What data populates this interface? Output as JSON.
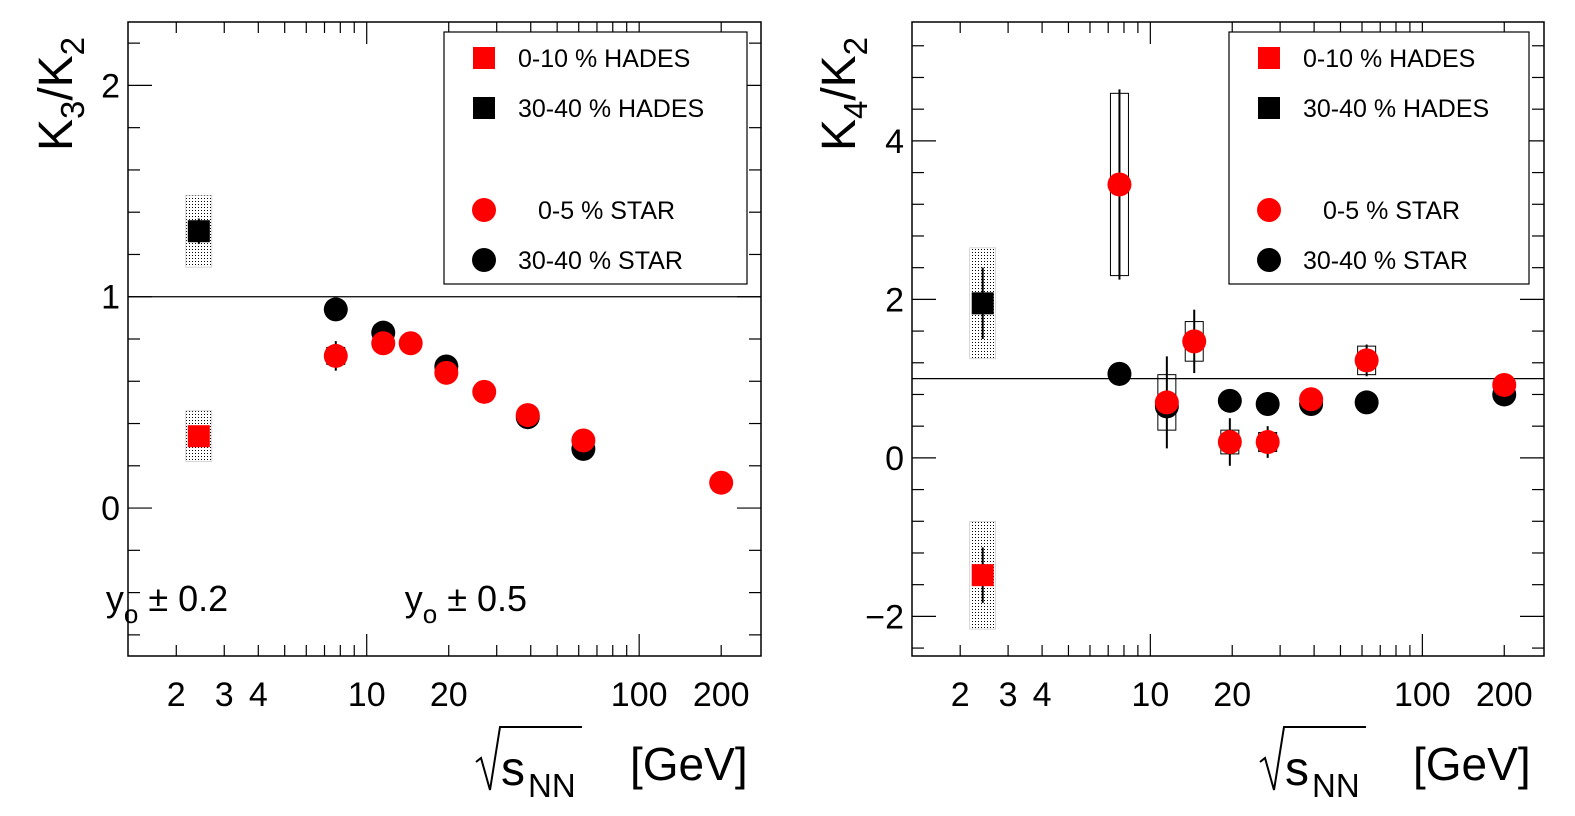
{
  "chart_data": [
    {
      "type": "scatter",
      "ylabel_main": "K",
      "ylabel_sub1": "3",
      "ylabel_sep": "/K",
      "ylabel_sub2": "2",
      "xlabel_main": "s",
      "xlabel_sub": "NN",
      "xlabel_unit": "[GeV]",
      "xscale": "log",
      "xlim": [
        1.33,
        280
      ],
      "ylim": [
        -0.7,
        2.3
      ],
      "x_ticks": [
        {
          "v": 2,
          "label": "2"
        },
        {
          "v": 3,
          "label": "3"
        },
        {
          "v": 4,
          "label": "4"
        },
        {
          "v": 10,
          "label": "10"
        },
        {
          "v": 20,
          "label": "20"
        },
        {
          "v": 100,
          "label": "100"
        },
        {
          "v": 200,
          "label": "200"
        }
      ],
      "y_ticks": [
        {
          "v": 0,
          "label": "0"
        },
        {
          "v": 1,
          "label": "1"
        },
        {
          "v": 2,
          "label": "2"
        }
      ],
      "reference_line": 1,
      "legend_position": "top-right",
      "legend": [
        {
          "marker": "square",
          "color": "#ff0000",
          "label": "0-10 % HADES"
        },
        {
          "marker": "square",
          "color": "#000000",
          "label": "30-40 % HADES"
        },
        {
          "marker": "circle",
          "color": "#ff0000",
          "label": "0-5 % STAR"
        },
        {
          "marker": "circle",
          "color": "#000000",
          "label": "30-40 % STAR"
        }
      ],
      "annotations": [
        {
          "y": "y",
          "sub": "o",
          "rest": " ± 0.2",
          "x_data": 1.6,
          "y_data": -0.25
        },
        {
          "y": "y",
          "sub": "o",
          "rest": " ± 0.5",
          "x_data": 20,
          "y_data": -0.25
        }
      ],
      "series": [
        {
          "name": "30-40 % HADES",
          "marker": "square",
          "color": "#000000",
          "points": [
            {
              "x": 2.42,
              "y": 1.31,
              "err": 0.06,
              "sys": 0.17
            }
          ]
        },
        {
          "name": "0-10 % HADES",
          "marker": "square",
          "color": "#ff0000",
          "points": [
            {
              "x": 2.42,
              "y": 0.34,
              "err": 0.04,
              "sys": 0.12
            }
          ]
        },
        {
          "name": "30-40 % STAR",
          "marker": "circle",
          "color": "#000000",
          "points": [
            {
              "x": 7.7,
              "y": 0.94
            },
            {
              "x": 11.5,
              "y": 0.83
            },
            {
              "x": 19.6,
              "y": 0.67
            },
            {
              "x": 39,
              "y": 0.43
            },
            {
              "x": 62.4,
              "y": 0.28
            }
          ]
        },
        {
          "name": "0-5 % STAR",
          "marker": "circle",
          "color": "#ff0000",
          "points": [
            {
              "x": 7.7,
              "y": 0.72,
              "err": 0.07,
              "sys": 0.04
            },
            {
              "x": 11.5,
              "y": 0.78,
              "sys": 0.03
            },
            {
              "x": 14.5,
              "y": 0.78
            },
            {
              "x": 19.6,
              "y": 0.64
            },
            {
              "x": 27,
              "y": 0.55
            },
            {
              "x": 39,
              "y": 0.44
            },
            {
              "x": 62.4,
              "y": 0.32
            },
            {
              "x": 200,
              "y": 0.12
            }
          ]
        }
      ]
    },
    {
      "type": "scatter",
      "ylabel_main": "K",
      "ylabel_sub1": "4",
      "ylabel_sep": "/K",
      "ylabel_sub2": "2",
      "xlabel_main": "s",
      "xlabel_sub": "NN",
      "xlabel_unit": "[GeV]",
      "xscale": "log",
      "xlim": [
        1.33,
        280
      ],
      "ylim": [
        -2.5,
        5.5
      ],
      "x_ticks": [
        {
          "v": 2,
          "label": "2"
        },
        {
          "v": 3,
          "label": "3"
        },
        {
          "v": 4,
          "label": "4"
        },
        {
          "v": 10,
          "label": "10"
        },
        {
          "v": 20,
          "label": "20"
        },
        {
          "v": 100,
          "label": "100"
        },
        {
          "v": 200,
          "label": "200"
        }
      ],
      "y_ticks": [
        {
          "v": -2,
          "label": "−2"
        },
        {
          "v": 0,
          "label": "0"
        },
        {
          "v": 2,
          "label": "2"
        },
        {
          "v": 4,
          "label": "4"
        }
      ],
      "reference_line": 1,
      "legend_position": "top-right",
      "legend": [
        {
          "marker": "square",
          "color": "#ff0000",
          "label": "0-10 % HADES"
        },
        {
          "marker": "square",
          "color": "#000000",
          "label": "30-40 % HADES"
        },
        {
          "marker": "circle",
          "color": "#ff0000",
          "label": "0-5 % STAR"
        },
        {
          "marker": "circle",
          "color": "#000000",
          "label": "30-40 % STAR"
        }
      ],
      "annotations": [],
      "series": [
        {
          "name": "30-40 % HADES",
          "marker": "square",
          "color": "#000000",
          "points": [
            {
              "x": 2.42,
              "y": 1.95,
              "err": 0.45,
              "sys": 0.7
            }
          ]
        },
        {
          "name": "0-10 % HADES",
          "marker": "square",
          "color": "#ff0000",
          "points": [
            {
              "x": 2.42,
              "y": -1.48,
              "err": 0.35,
              "sys": 0.68
            }
          ]
        },
        {
          "name": "30-40 % STAR",
          "marker": "circle",
          "color": "#000000",
          "points": [
            {
              "x": 7.7,
              "y": 1.06,
              "err": 0.15
            },
            {
              "x": 11.5,
              "y": 0.65
            },
            {
              "x": 19.6,
              "y": 0.72
            },
            {
              "x": 27,
              "y": 0.68
            },
            {
              "x": 39,
              "y": 0.68
            },
            {
              "x": 62.4,
              "y": 0.7
            },
            {
              "x": 200,
              "y": 0.8
            }
          ]
        },
        {
          "name": "0-5 % STAR",
          "marker": "circle",
          "color": "#ff0000",
          "points": [
            {
              "x": 7.7,
              "y": 3.45,
              "err": 1.2,
              "sys": 1.15
            },
            {
              "x": 11.5,
              "y": 0.7,
              "err": 0.58,
              "sys": 0.35
            },
            {
              "x": 14.5,
              "y": 1.47,
              "err": 0.4,
              "sys": 0.25
            },
            {
              "x": 19.6,
              "y": 0.2,
              "err": 0.3,
              "sys": 0.15
            },
            {
              "x": 27,
              "y": 0.2,
              "err": 0.2,
              "sys": 0.12
            },
            {
              "x": 39,
              "y": 0.74,
              "err": 0.1,
              "sys": 0.08
            },
            {
              "x": 62.4,
              "y": 1.23,
              "err": 0.2,
              "sys": 0.18
            },
            {
              "x": 200,
              "y": 0.92,
              "err": 0.12,
              "sys": 0.08
            }
          ]
        }
      ]
    }
  ]
}
